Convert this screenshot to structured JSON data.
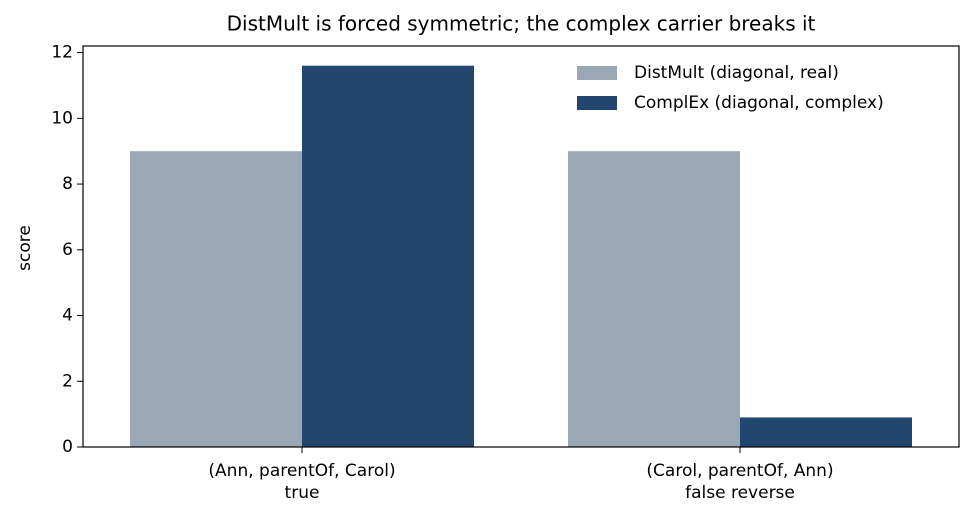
{
  "chart_data": {
    "type": "bar",
    "title": "DistMult is forced symmetric; the complex carrier breaks it",
    "y_label": "score",
    "categories": [
      "(Ann, parentOf, Carol)\ntrue",
      "(Carol, parentOf, Ann)\nfalse reverse"
    ],
    "series": [
      {
        "name": "DistMult (diagonal, real)",
        "color": "#9aa8b6",
        "values": [
          9.0,
          9.0
        ]
      },
      {
        "name": "ComplEx (diagonal, complex)",
        "color": "#22466e",
        "values": [
          11.6,
          0.9
        ]
      }
    ],
    "ylim": [
      0,
      12.2
    ],
    "yticks": [
      0,
      2,
      4,
      6,
      8,
      10,
      12
    ],
    "grid": false,
    "legend": "upper right"
  }
}
